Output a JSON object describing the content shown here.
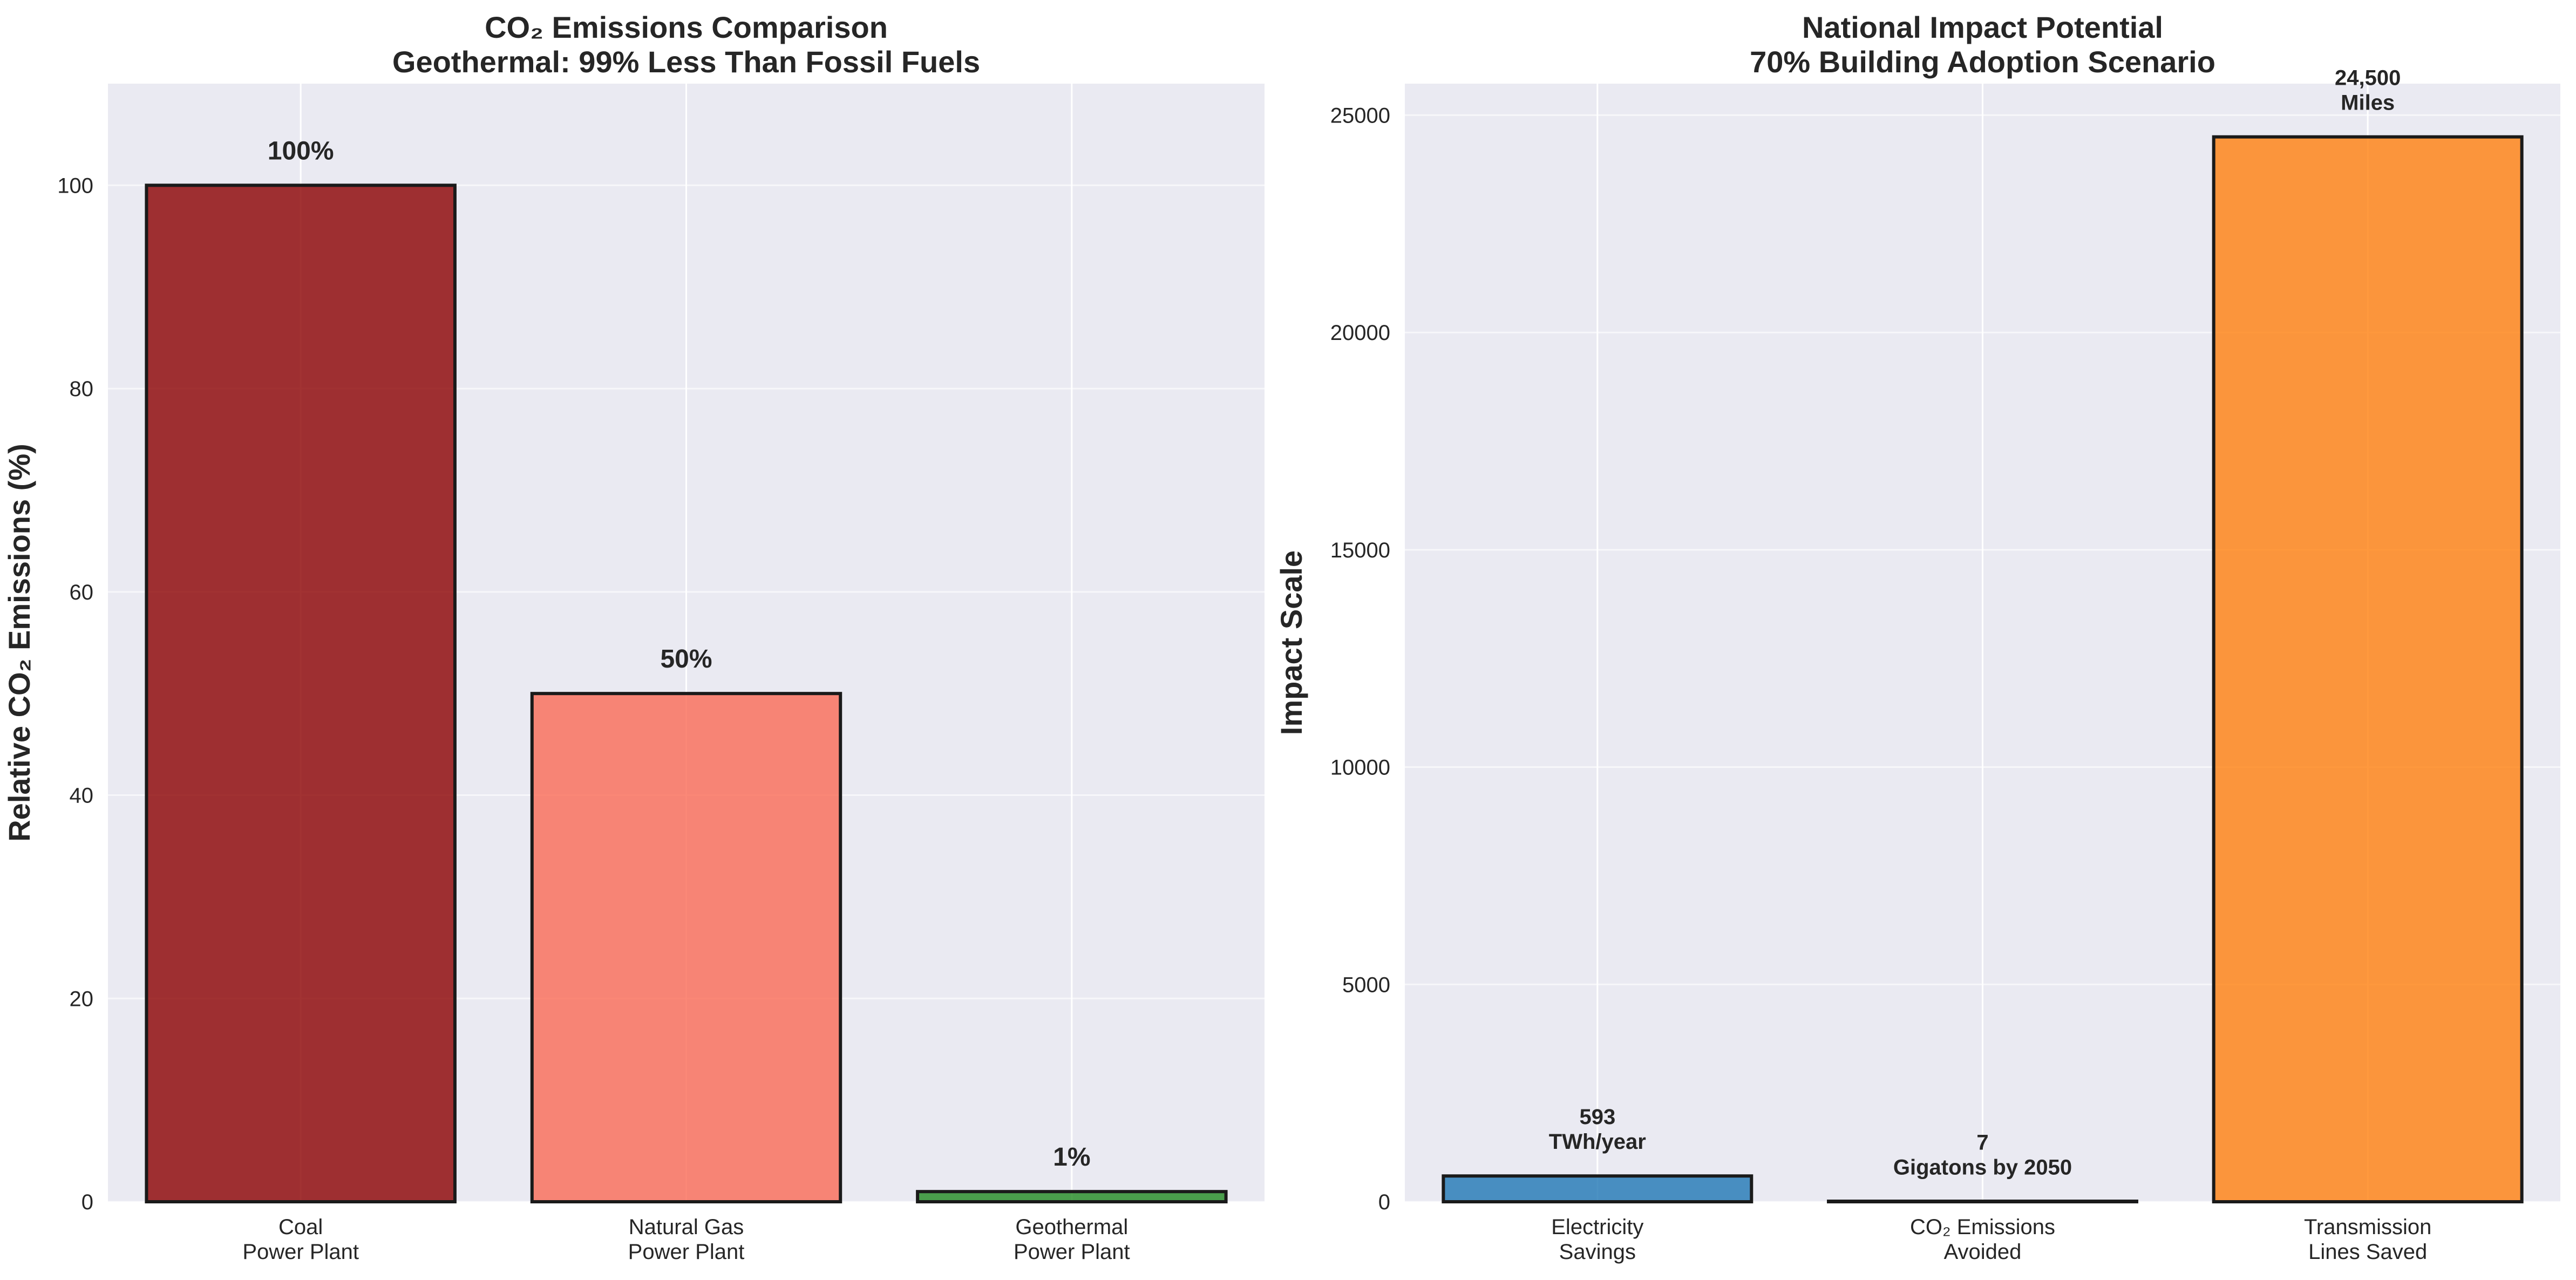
{
  "chart_data": [
    {
      "type": "bar",
      "title_lines": [
        "CO₂ Emissions Comparison",
        "Geothermal: 99% Less Than Fossil Fuels"
      ],
      "xlabel": "",
      "ylabel": "Relative CO₂ Emissions (%)",
      "ylim": [
        0,
        110
      ],
      "yticks": [
        0,
        20,
        40,
        60,
        80,
        100
      ],
      "grid": true,
      "categories": [
        [
          "Coal",
          "Power Plant"
        ],
        [
          "Natural Gas",
          "Power Plant"
        ],
        [
          "Geothermal",
          "Power Plant"
        ]
      ],
      "values": [
        100,
        50,
        1
      ],
      "value_labels": [
        [
          "100%"
        ],
        [
          "50%"
        ],
        [
          "1%"
        ]
      ],
      "colors": [
        "#8b0000",
        "#fa6a55",
        "#228b22"
      ]
    },
    {
      "type": "bar",
      "title_lines": [
        "National Impact Potential",
        "70% Building Adoption Scenario"
      ],
      "xlabel": "",
      "ylabel": "Impact Scale",
      "ylim": [
        0,
        25725
      ],
      "yticks": [
        0,
        5000,
        10000,
        15000,
        20000,
        25000
      ],
      "grid": true,
      "categories": [
        [
          "Electricity",
          "Savings"
        ],
        [
          "CO₂ Emissions",
          "Avoided"
        ],
        [
          "Transmission",
          "Lines Saved"
        ]
      ],
      "values": [
        593,
        7,
        24500
      ],
      "value_labels": [
        [
          "593",
          "TWh/year"
        ],
        [
          "7",
          "Gigatons by 2050"
        ],
        [
          "24,500",
          "Miles"
        ]
      ],
      "colors": [
        "#1f77b4",
        "#2ca02c",
        "#ff7f0e"
      ]
    }
  ]
}
